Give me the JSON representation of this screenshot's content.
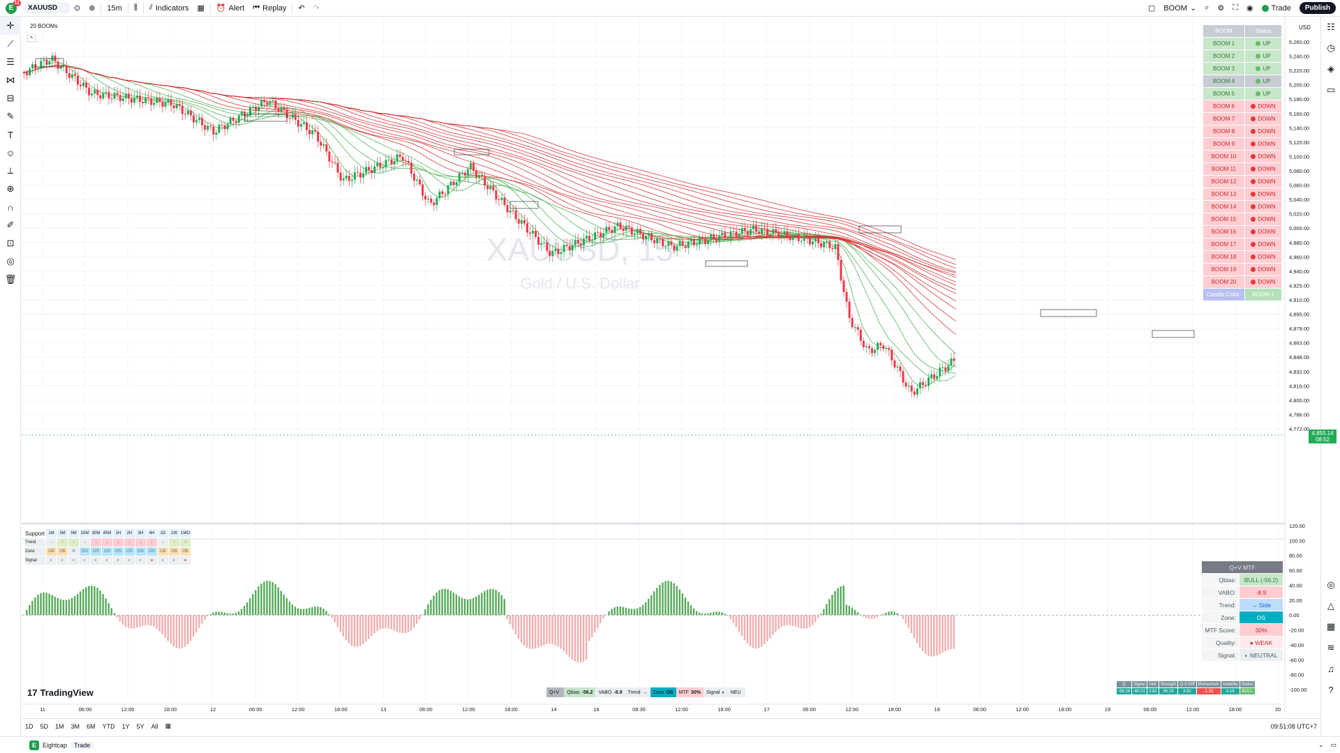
{
  "topbar": {
    "logo_letter": "E",
    "notif_count": "11",
    "symbol": "XAUUSD",
    "interval": "15m",
    "indicators_label": "Indicators",
    "alert_label": "Alert",
    "replay_label": "Replay",
    "layout_name": "BOOM",
    "trade_label": "Trade",
    "publish_label": "Publish"
  },
  "chart": {
    "indicator_title": "20 BOOMs",
    "watermark_symbol": "XAUUSD, 15",
    "watermark_desc": "Gold / U.S. Dollar",
    "currency": "USD",
    "last_price": "4,855.14",
    "countdown": "08:52",
    "price_ticks": [
      "5,260.00",
      "5,240.00",
      "5,220.00",
      "5,200.00",
      "5,180.00",
      "5,160.00",
      "5,140.00",
      "5,120.00",
      "5,100.00",
      "5,080.00",
      "5,060.00",
      "5,040.00",
      "5,020.00",
      "5,000.00",
      "4,980.00",
      "4,960.00",
      "4,940.00",
      "4,925.00",
      "4,910.00",
      "4,895.00",
      "4,879.00",
      "4,863.00",
      "4,848.00",
      "4,832.00",
      "4,816.00",
      "4,800.00",
      "4,786.00",
      "4,772.00"
    ],
    "osc_ticks": [
      "120.00",
      "100.00",
      "80.00",
      "60.00",
      "40.00",
      "20.00",
      "0.00",
      "-20.00",
      "-40.00",
      "-60.00",
      "-80.00",
      "-100.00"
    ],
    "time_ticks": [
      "11",
      "06:00",
      "12:00",
      "18:00",
      "12",
      "06:00",
      "12:00",
      "18:00",
      "13",
      "06:00",
      "12:00",
      "18:00",
      "14",
      "16",
      "08:30",
      "12:00",
      "18:00",
      "17",
      "06:00",
      "12:00",
      "18:00",
      "18",
      "06:00",
      "12:00",
      "18:00",
      "19",
      "06:00",
      "12:00",
      "18:00",
      "20"
    ],
    "colors": {
      "up": "#22ab56",
      "down": "#f23645",
      "boom_green": "#4caf50",
      "boom_red": "#d32f2f"
    }
  },
  "boom_table": {
    "headers": [
      "BOOM",
      "Status"
    ],
    "rows": [
      {
        "name": "BOOM 1",
        "status": "UP",
        "dir": "up"
      },
      {
        "name": "BOOM 2",
        "status": "UP",
        "dir": "up"
      },
      {
        "name": "BOOM 3",
        "status": "UP",
        "dir": "up"
      },
      {
        "name": "BOOM 4",
        "status": "UP",
        "dir": "up"
      },
      {
        "name": "BOOM 5",
        "status": "UP",
        "dir": "up"
      },
      {
        "name": "BOOM 6",
        "status": "DOWN",
        "dir": "down"
      },
      {
        "name": "BOOM 7",
        "status": "DOWN",
        "dir": "down"
      },
      {
        "name": "BOOM 8",
        "status": "DOWN",
        "dir": "down"
      },
      {
        "name": "BOOM 9",
        "status": "DOWN",
        "dir": "down"
      },
      {
        "name": "BOOM 10",
        "status": "DOWN",
        "dir": "down"
      },
      {
        "name": "BOOM 11",
        "status": "DOWN",
        "dir": "down"
      },
      {
        "name": "BOOM 12",
        "status": "DOWN",
        "dir": "down"
      },
      {
        "name": "BOOM 13",
        "status": "DOWN",
        "dir": "down"
      },
      {
        "name": "BOOM 14",
        "status": "DOWN",
        "dir": "down"
      },
      {
        "name": "BOOM 15",
        "status": "DOWN",
        "dir": "down"
      },
      {
        "name": "BOOM 16",
        "status": "DOWN",
        "dir": "down"
      },
      {
        "name": "BOOM 17",
        "status": "DOWN",
        "dir": "down"
      },
      {
        "name": "BOOM 18",
        "status": "DOWN",
        "dir": "down"
      },
      {
        "name": "BOOM 19",
        "status": "DOWN",
        "dir": "down"
      },
      {
        "name": "BOOM 20",
        "status": "DOWN",
        "dir": "down"
      }
    ],
    "candle_color_label": "Candle Color:",
    "candle_color_value": "BOOM 1"
  },
  "support_table": {
    "title": "Support",
    "timeframes": [
      "1M",
      "3M",
      "5M",
      "15M",
      "30M",
      "45M",
      "1H",
      "2H",
      "3H",
      "4H",
      "1D",
      "1W",
      "1MO"
    ],
    "rows": [
      {
        "label": "Trend",
        "cells": [
          "→",
          "↑",
          "↑",
          "→",
          "↓",
          "↓",
          "↓",
          "↓",
          "↓",
          "↓",
          "→",
          "↑",
          "↑"
        ]
      },
      {
        "label": "Zone",
        "cells": [
          "OB",
          "OB",
          "N",
          "OS",
          "OS",
          "OS",
          "OS",
          "OS",
          "OS",
          "OS",
          "OB",
          "OB",
          "OB"
        ]
      },
      {
        "label": "Signal",
        "cells": [
          "◐",
          "◐",
          "◐",
          "◐",
          "◐",
          "◐",
          "◐",
          "◐",
          "◐",
          "●",
          "◐",
          "◐",
          "●"
        ]
      }
    ]
  },
  "mtf_table": {
    "title": "Q+V MTF",
    "rows": [
      {
        "label": "Qbias:",
        "value": "BULL (-56.2)"
      },
      {
        "label": "VABO:",
        "value": "-8.9"
      },
      {
        "label": "Trend:",
        "value": "→ Side"
      },
      {
        "label": "Zone:",
        "value": "OS"
      },
      {
        "label": "MTF Score:",
        "value": "30%"
      },
      {
        "label": "Quality:",
        "value": "● WEAK"
      },
      {
        "label": "Signal:",
        "value": "◐ NEUTRAL"
      }
    ]
  },
  "status_strip": {
    "items": [
      {
        "label": "Q+V",
        "value": ""
      },
      {
        "label": "Qbias",
        "value": "-56.2"
      },
      {
        "label": "VABO",
        "value": "-8.9"
      },
      {
        "label": "Trend",
        "value": "→"
      },
      {
        "label": "Zone",
        "value": "OS"
      },
      {
        "label": "MTF",
        "value": "30%"
      },
      {
        "label": "Signal",
        "value": "◐"
      },
      {
        "label": "NEU",
        "value": ""
      }
    ]
  },
  "stats_table": {
    "headers": [
      "Q",
      "Signal",
      "Hist",
      "Strength",
      "Q-S Diff",
      "Momentum",
      "Volatility",
      "Status"
    ],
    "values": [
      "-56.19",
      "-60.01",
      "3.82",
      "56.19",
      "3.82",
      "-1.35",
      "4.19",
      "BULL"
    ]
  },
  "brand": {
    "name": "TradingView",
    "logo": "17"
  },
  "bottombar": {
    "ranges": [
      "1D",
      "5D",
      "1M",
      "3M",
      "6M",
      "YTD",
      "1Y",
      "5Y",
      "All"
    ],
    "clock": "09:51:08 UTC+7"
  },
  "footer": {
    "broker": "Eightcap",
    "trade": "Trade"
  }
}
